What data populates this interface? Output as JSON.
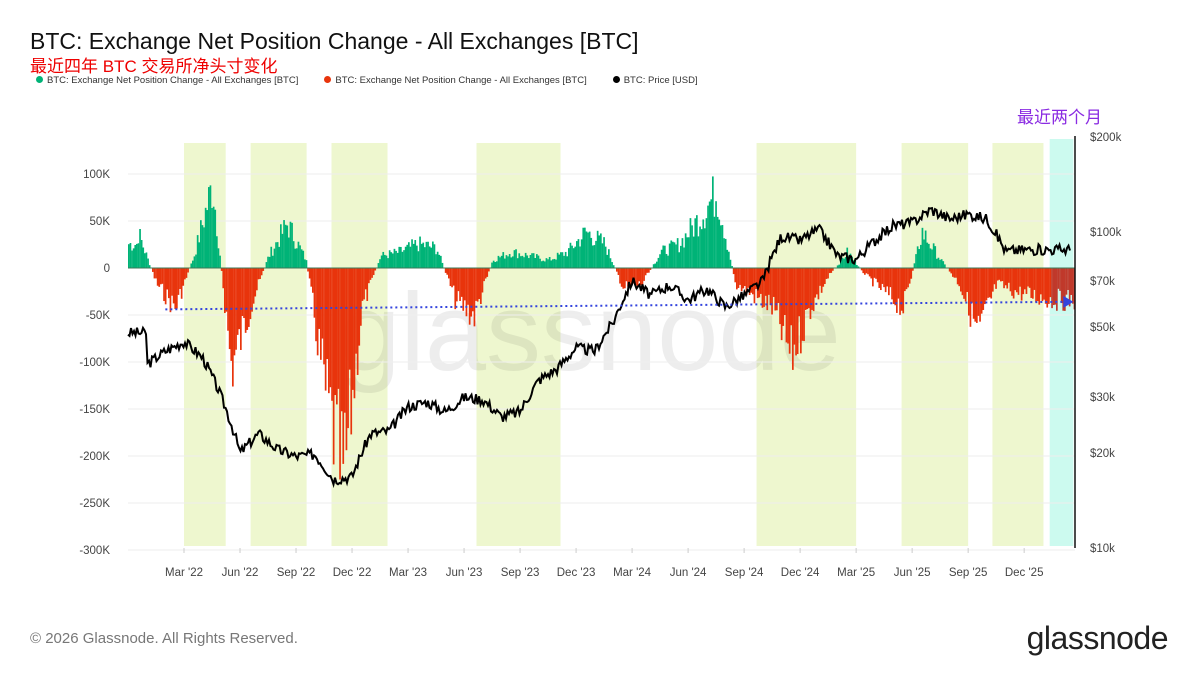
{
  "header": {
    "title": "BTC: Exchange Net Position Change - All Exchanges [BTC]",
    "subtitle": "最近四年 BTC 交易所净头寸变化"
  },
  "legend": [
    {
      "label": "BTC: Exchange Net Position Change - All Exchanges [BTC]",
      "color": "#00b377"
    },
    {
      "label": "BTC: Exchange Net Position Change - All Exchanges [BTC]",
      "color": "#e8340c"
    },
    {
      "label": "BTC: Price [USD]",
      "color": "#000000"
    }
  ],
  "annotation": "最近两个月",
  "footer": {
    "copyright": "© 2026 Glassnode. All Rights Reserved.",
    "logo": "glassnode",
    "watermark": "glassnode"
  },
  "chart_data": {
    "type": "area",
    "title": "BTC: Exchange Net Position Change - All Exchanges [BTC]",
    "x_ticks": [
      "Mar '22",
      "Jun '22",
      "Sep '22",
      "Dec '22",
      "Mar '23",
      "Jun '23",
      "Sep '23",
      "Dec '23",
      "Mar '24",
      "Jun '24",
      "Sep '24",
      "Dec '24",
      "Mar '25",
      "Jun '25",
      "Sep '25",
      "Dec '25"
    ],
    "x_range": [
      "2021-12-01",
      "2026-02-20"
    ],
    "y_left": {
      "ticks": [
        "100K",
        "50K",
        "0",
        "-50K",
        "-100K",
        "-150K",
        "-200K",
        "-250K",
        "-300K"
      ],
      "range": [
        -300000,
        130000
      ]
    },
    "y_right": {
      "scale": "log",
      "ticks": [
        "$200k",
        "$100k",
        "$70k",
        "$50k",
        "$30k",
        "$20k",
        "$10k"
      ],
      "range": [
        10000,
        200000
      ]
    },
    "net_position_monthly_k": {
      "months": [
        "2021-12",
        "2022-01",
        "2022-02",
        "2022-03",
        "2022-04",
        "2022-05",
        "2022-06",
        "2022-07",
        "2022-08",
        "2022-09",
        "2022-10",
        "2022-11",
        "2022-12",
        "2023-01",
        "2023-02",
        "2023-03",
        "2023-04",
        "2023-05",
        "2023-06",
        "2023-07",
        "2023-08",
        "2023-09",
        "2023-10",
        "2023-11",
        "2023-12",
        "2024-01",
        "2024-02",
        "2024-03",
        "2024-04",
        "2024-05",
        "2024-06",
        "2024-07",
        "2024-08",
        "2024-09",
        "2024-10",
        "2024-11",
        "2024-12",
        "2025-01",
        "2025-02",
        "2025-03",
        "2025-04",
        "2025-05",
        "2025-06",
        "2025-07",
        "2025-08",
        "2025-09",
        "2025-10",
        "2025-11",
        "2025-12",
        "2026-01",
        "2026-02"
      ],
      "values": [
        30,
        45,
        -20,
        -50,
        15,
        105,
        -125,
        -50,
        15,
        55,
        10,
        -150,
        -265,
        -50,
        15,
        20,
        30,
        25,
        -40,
        -60,
        10,
        20,
        15,
        10,
        20,
        45,
        30,
        -25,
        -20,
        20,
        30,
        60,
        95,
        -20,
        -35,
        -50,
        -110,
        -50,
        -10,
        20,
        -10,
        -30,
        -50,
        45,
        10,
        -20,
        -80,
        -20,
        -30,
        -35,
        -40
      ]
    },
    "price_monthly_usd": {
      "months": [
        "2021-12",
        "2022-01",
        "2022-02",
        "2022-03",
        "2022-04",
        "2022-05",
        "2022-06",
        "2022-07",
        "2022-08",
        "2022-09",
        "2022-10",
        "2022-11",
        "2022-12",
        "2023-01",
        "2023-02",
        "2023-03",
        "2023-04",
        "2023-05",
        "2023-06",
        "2023-07",
        "2023-08",
        "2023-09",
        "2023-10",
        "2023-11",
        "2023-12",
        "2024-01",
        "2024-02",
        "2024-03",
        "2024-04",
        "2024-05",
        "2024-06",
        "2024-07",
        "2024-08",
        "2024-09",
        "2024-10",
        "2024-11",
        "2024-12",
        "2025-01",
        "2025-02",
        "2025-03",
        "2025-04",
        "2025-05",
        "2025-06",
        "2025-07",
        "2025-08",
        "2025-09",
        "2025-10",
        "2025-11",
        "2025-12",
        "2026-01",
        "2026-02"
      ],
      "values": [
        48000,
        38000,
        42000,
        45000,
        40000,
        30000,
        20000,
        23000,
        20500,
        19500,
        19800,
        16500,
        16800,
        23000,
        23500,
        28000,
        29000,
        27000,
        30000,
        29500,
        26000,
        27000,
        34000,
        37000,
        43000,
        42000,
        52000,
        70000,
        63000,
        68000,
        61000,
        66000,
        58000,
        63000,
        70000,
        97000,
        94000,
        102000,
        84000,
        82000,
        94000,
        105000,
        107000,
        118000,
        110000,
        114000,
        110000,
        87000,
        88000,
        88000,
        88000
      ]
    },
    "highlight_periods": [
      [
        "2022-03-01",
        "2022-05-08"
      ],
      [
        "2022-06-18",
        "2022-09-18"
      ],
      [
        "2022-10-28",
        "2023-01-28"
      ],
      [
        "2023-06-21",
        "2023-11-06"
      ],
      [
        "2024-09-21",
        "2025-03-01"
      ],
      [
        "2025-05-14",
        "2025-09-01"
      ],
      [
        "2025-10-10",
        "2026-01-02"
      ]
    ],
    "recent_period": [
      "2026-01-12",
      "2026-02-20"
    ],
    "reference_line": {
      "from": [
        "2022-02-01",
        -44000
      ],
      "to": [
        "2026-02-20",
        -36000
      ],
      "style": "dotted",
      "color": "#3344dd"
    },
    "colors": {
      "positive": "#00b377",
      "negative": "#e8340c",
      "recent_negative": "#c0392b",
      "price": "#000000",
      "highlight": "#eef7cf",
      "recent": "#ccfaef"
    }
  }
}
